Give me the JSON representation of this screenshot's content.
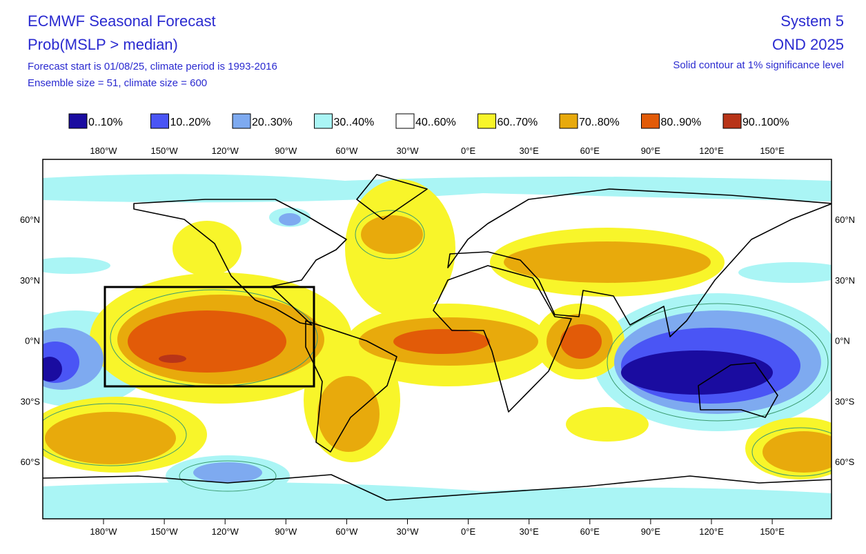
{
  "header": {
    "title": "ECMWF Seasonal Forecast",
    "subtitle": "Prob(MSLP > median)",
    "line1": "Forecast start is 01/08/25, climate period is 1993-2016",
    "line2": "Ensemble size = 51, climate size = 600",
    "system": "System 5",
    "period": "OND 2025",
    "note": "Solid contour at 1% significance level"
  },
  "legend": [
    {
      "label": "0..10%",
      "color": "#1a0ca0"
    },
    {
      "label": "10..20%",
      "color": "#4a55f5"
    },
    {
      "label": "20..30%",
      "color": "#7eaaf0"
    },
    {
      "label": "30..40%",
      "color": "#aaf5f5"
    },
    {
      "label": "40..60%",
      "color": "#ffffff"
    },
    {
      "label": "60..70%",
      "color": "#f8f52a"
    },
    {
      "label": "70..80%",
      "color": "#e8aa0c"
    },
    {
      "label": "80..90%",
      "color": "#e25b08"
    },
    {
      "label": "90..100%",
      "color": "#b83418"
    }
  ],
  "lon_labels": [
    "180°W",
    "150°W",
    "120°W",
    "90°W",
    "60°W",
    "30°W",
    "0°E",
    "30°E",
    "60°E",
    "90°E",
    "120°E",
    "150°E"
  ],
  "lat_labels": [
    "60°N",
    "30°N",
    "0°N",
    "30°S",
    "60°S"
  ]
}
